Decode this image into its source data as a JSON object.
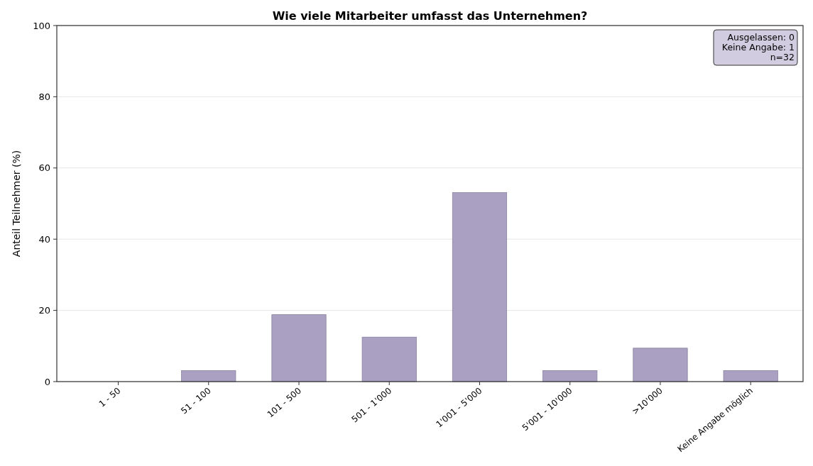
{
  "chart_data": {
    "type": "bar",
    "title": "Wie viele Mitarbeiter umfasst das Unternehmen?",
    "ylabel": "Anteil Teilnehmer (%)",
    "categories": [
      "1 - 50",
      "51 - 100",
      "101 - 500",
      "501 - 1'000",
      "1'001 - 5'000",
      "5'001 - 10'000",
      ">10'000",
      "Keine Angabe möglich"
    ],
    "values": [
      0,
      3.1,
      18.8,
      12.5,
      53.1,
      3.1,
      9.4,
      3.1
    ],
    "color": "#aaa1c2",
    "ylim": [
      0,
      100
    ],
    "yticks": [
      0,
      20,
      40,
      60,
      80,
      100
    ],
    "grid": "y",
    "annotations": [
      "Ausgelassen: 0\nKeine Angabe: 1\nn=32"
    ]
  }
}
